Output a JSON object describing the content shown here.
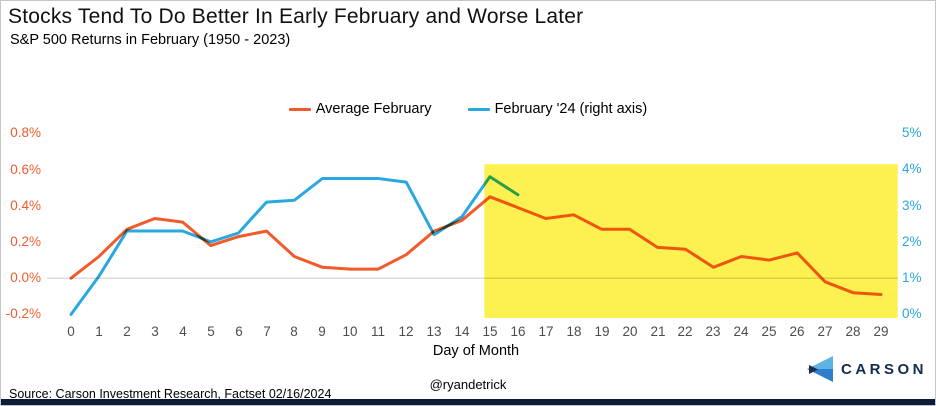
{
  "header": {
    "title": "Stocks Tend To Do Better In Early February and Worse Later",
    "subtitle": "S&P 500 Returns in February (1950 - 2023)"
  },
  "legend": {
    "items": [
      {
        "label": "Average February",
        "color": "#F15B2B"
      },
      {
        "label": "February '24 (right axis)",
        "color": "#2BA7E0"
      }
    ]
  },
  "chart_data": {
    "type": "line",
    "title": "S&P 500 Returns in February (1950 - 2023)",
    "xlabel": "Day of Month",
    "x": [
      0,
      1,
      2,
      3,
      4,
      5,
      6,
      7,
      8,
      9,
      10,
      11,
      12,
      13,
      14,
      15,
      16,
      17,
      18,
      19,
      20,
      21,
      22,
      23,
      24,
      25,
      26,
      27,
      28,
      29
    ],
    "series": [
      {
        "name": "Average February",
        "axis": "left",
        "color": "#F15B2B",
        "values": [
          0.0,
          0.12,
          0.27,
          0.33,
          0.31,
          0.18,
          0.23,
          0.26,
          0.12,
          0.06,
          0.05,
          0.05,
          0.13,
          0.26,
          0.32,
          0.45,
          0.39,
          0.33,
          0.35,
          0.27,
          0.27,
          0.17,
          0.16,
          0.06,
          0.12,
          0.1,
          0.14,
          -0.02,
          -0.08,
          -0.09
        ]
      },
      {
        "name": "February '24 (right axis)",
        "axis": "right",
        "color": "#2BA7E0",
        "values": [
          0.0,
          1.05,
          2.3,
          2.3,
          2.3,
          2.0,
          2.25,
          3.1,
          3.15,
          3.75,
          3.75,
          3.75,
          3.65,
          2.2,
          2.7,
          3.8,
          3.3
        ]
      }
    ],
    "left_axis": {
      "color": "#F15B2B",
      "min": -0.2,
      "max": 0.8,
      "ticks": [
        {
          "label": "0.8%",
          "value": 0.8
        },
        {
          "label": "0.6%",
          "value": 0.6
        },
        {
          "label": "0.4%",
          "value": 0.4
        },
        {
          "label": "0.2%",
          "value": 0.2
        },
        {
          "label": "0.0%",
          "value": 0.0
        },
        {
          "label": "-0.2%",
          "value": -0.2
        }
      ]
    },
    "right_axis": {
      "color": "#2BA7E0",
      "min": 0,
      "max": 5,
      "ticks": [
        {
          "label": "5%",
          "value": 5
        },
        {
          "label": "4%",
          "value": 4
        },
        {
          "label": "3%",
          "value": 3
        },
        {
          "label": "2%",
          "value": 2
        },
        {
          "label": "1%",
          "value": 1
        },
        {
          "label": "0%",
          "value": 0
        }
      ]
    },
    "highlight": {
      "x_start": 14.8,
      "x_end": 29.6,
      "top_left_axis": 0.63,
      "bottom_left_axis": -0.22,
      "color": "#FCF151"
    },
    "zero_line": {
      "value": 0.0,
      "color": "#D9D9D9"
    },
    "grid": false,
    "legend_position": "top-center"
  },
  "footer": {
    "source": "Source: Carson Investment Research, Factset 02/16/2024",
    "handle": "@ryandetrick",
    "brand": "CARSON",
    "brand_colors": {
      "navy": "#142a4e",
      "light_blue": "#5eb3e4",
      "mid_blue": "#2e7ecc"
    }
  }
}
